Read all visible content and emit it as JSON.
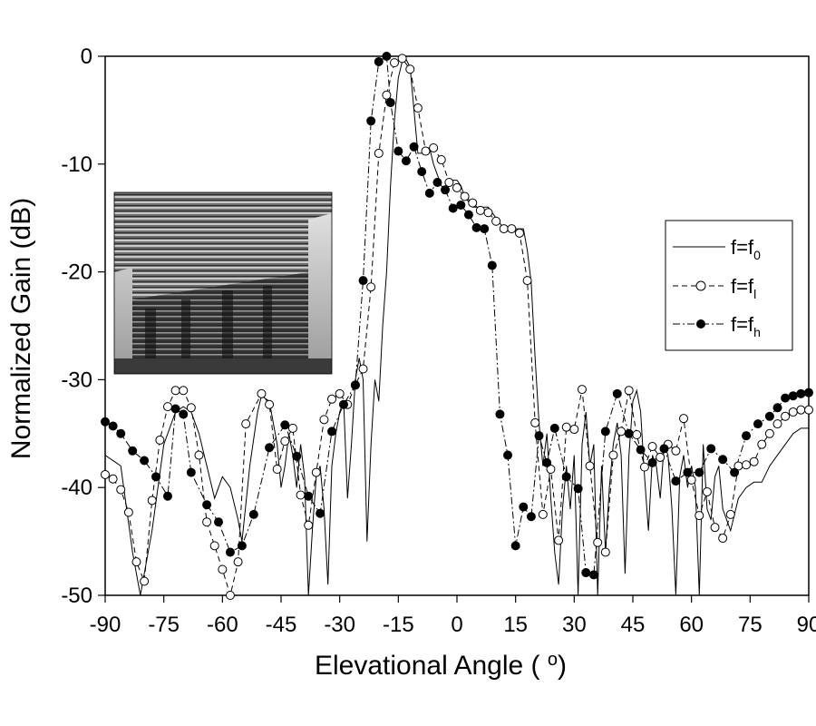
{
  "chart_data": {
    "type": "line",
    "xlabel": "Elevational Angle ( ",
    "xlabel_unit": "o",
    "xlabel_close": ")",
    "ylabel": "Normalized Gain (dB)",
    "xlim": [
      -90,
      90
    ],
    "ylim": [
      -50,
      0
    ],
    "x_ticks": [
      -90,
      -75,
      -60,
      -45,
      -30,
      -15,
      0,
      15,
      30,
      45,
      60,
      75,
      90
    ],
    "y_ticks": [
      0,
      -10,
      -20,
      -30,
      -40,
      -50
    ],
    "x_tick_labels": [
      "-90",
      "-75",
      "-60",
      "-45",
      "-30",
      "-15",
      "0",
      "15",
      "30",
      "45",
      "60",
      "75",
      "90"
    ],
    "y_tick_labels": [
      "0",
      "-10",
      "-20",
      "-30",
      "-40",
      "-50"
    ],
    "grid": false,
    "legend_position": "right",
    "inset_photo": "antenna-array-photo",
    "series": [
      {
        "name": "f=f",
        "subscript": "0",
        "style": "solid",
        "marker": "none",
        "x": [
          -90,
          -86,
          -83,
          -81,
          -78,
          -75,
          -72,
          -70,
          -68,
          -66,
          -64,
          -62,
          -60,
          -58,
          -56,
          -55,
          -53,
          -51,
          -50,
          -48,
          -46,
          -45,
          -44,
          -43,
          -42,
          -41,
          -40,
          -39,
          -38,
          -37,
          -36,
          -35,
          -34,
          -33,
          -32,
          -31,
          -30,
          -29,
          -28,
          -27,
          -26,
          -25,
          -24,
          -23,
          -22,
          -21,
          -20,
          -19,
          -18,
          -17,
          -16,
          -15,
          -14,
          -13,
          -12,
          -11,
          -10,
          -9,
          -8,
          -7,
          -6,
          -5,
          -4,
          -3,
          -2,
          -1,
          0,
          1,
          2,
          3,
          4,
          5,
          6,
          7,
          8,
          9,
          10,
          11,
          12,
          13,
          14,
          15,
          16,
          17,
          18,
          19,
          20,
          21,
          22,
          23,
          24,
          25,
          26,
          27,
          28,
          29,
          30,
          31,
          32,
          33,
          34,
          35,
          36,
          37,
          38,
          39,
          40,
          41,
          42,
          43,
          44,
          45,
          46,
          47,
          48,
          49,
          50,
          51,
          52,
          53,
          54,
          55,
          56,
          57,
          58,
          59,
          60,
          61,
          62,
          63,
          64,
          65,
          66,
          67,
          68,
          69,
          70,
          72,
          74,
          76,
          78,
          80,
          82,
          84,
          86,
          88,
          90
        ],
        "y": [
          -37,
          -38,
          -46,
          -50,
          -44,
          -36,
          -33,
          -32.5,
          -33,
          -35,
          -38,
          -41,
          -39,
          -40,
          -43,
          -45,
          -38,
          -33,
          -31.5,
          -32,
          -36,
          -40,
          -38,
          -35,
          -37,
          -40,
          -36,
          -39,
          -50,
          -44,
          -39,
          -38,
          -42,
          -49,
          -38,
          -35,
          -33,
          -32,
          -41,
          -36,
          -30,
          -28,
          -30,
          -45,
          -36,
          -30,
          -32,
          -25,
          -20,
          -12,
          -6,
          -2,
          -0.5,
          -0.3,
          -1,
          -5,
          -9,
          -9,
          -8.5,
          -8.5,
          -10,
          -11,
          -12,
          -12.5,
          -12,
          -11.5,
          -11.5,
          -12,
          -13,
          -13.5,
          -14,
          -14,
          -14,
          -14,
          -14,
          -14.5,
          -15,
          -15.5,
          -16,
          -16,
          -16,
          -16,
          -16,
          -16,
          -18,
          -21,
          -28,
          -34,
          -38,
          -35,
          -41,
          -46,
          -49,
          -42,
          -38,
          -42,
          -37,
          -50,
          -36,
          -33,
          -38,
          -36,
          -50,
          -38,
          -46,
          -40,
          -36,
          -34,
          -37,
          -48,
          -37,
          -32,
          -31,
          -33,
          -39,
          -44,
          -37,
          -38,
          -41,
          -36,
          -37,
          -42,
          -50,
          -39,
          -37,
          -40,
          -38,
          -40,
          -50,
          -36,
          -42,
          -43,
          -39,
          -38,
          -42,
          -43,
          -44,
          -41,
          -40,
          -39.5,
          -39.5,
          -38,
          -37,
          -36,
          -35,
          -34.5,
          -34.5
        ]
      },
      {
        "name": "f=f",
        "subscript": "l",
        "style": "dashed",
        "marker": "open-circle",
        "x": [
          -90,
          -88,
          -86,
          -84,
          -82,
          -80,
          -78,
          -76,
          -74,
          -72,
          -70,
          -68,
          -66,
          -64,
          -62,
          -60,
          -58,
          -56,
          -54,
          -50,
          -48,
          -46,
          -44,
          -42,
          -40,
          -38,
          -36,
          -34,
          -32,
          -30,
          -28,
          -26,
          -24,
          -22,
          -20,
          -18,
          -16,
          -14,
          -12,
          -10,
          -8,
          -6,
          -4,
          -2,
          0,
          2,
          4,
          6,
          8,
          10,
          12,
          14,
          16,
          18,
          20,
          22,
          24,
          26,
          28,
          30,
          32,
          34,
          36,
          38,
          40,
          42,
          44,
          46,
          48,
          50,
          52,
          54,
          56,
          58,
          60,
          62,
          64,
          66,
          68,
          70,
          72,
          74,
          76,
          78,
          80,
          82,
          84,
          86,
          88,
          90
        ],
        "y": [
          -38.8,
          -39.2,
          -40.2,
          -42.3,
          -46.9,
          -48.7,
          -41.2,
          -35.6,
          -32.5,
          -31.0,
          -31.0,
          -32.6,
          -37.0,
          -43.2,
          -45.4,
          -47.6,
          -50.0,
          -46.9,
          -34.1,
          -31.3,
          -32.3,
          -38.3,
          -35.7,
          -34.5,
          -40.7,
          -43.5,
          -38.6,
          -33.7,
          -31.8,
          -31.3,
          -32.3,
          -30.5,
          -29.0,
          -21.4,
          -9.0,
          -3.6,
          -0.6,
          -0.2,
          -1.2,
          -4.8,
          -8.8,
          -8.5,
          -9.6,
          -11.7,
          -12.2,
          -13.0,
          -13.6,
          -14.3,
          -14.5,
          -15.3,
          -16.0,
          -16.0,
          -16.4,
          -20.8,
          -34.0,
          -42.5,
          -38.3,
          -44.9,
          -34.4,
          -34.6,
          -30.9,
          -38.0,
          -45.1,
          -46.0,
          -37.0,
          -34.8,
          -31.0,
          -35.1,
          -38.1,
          -36.2,
          -37.2,
          -36.0,
          -36.6,
          -33.6,
          -39.3,
          -42.6,
          -40.4,
          -43.7,
          -44.7,
          -42.5,
          -38.0,
          -37.9,
          -37.6,
          -36.0,
          -35.0,
          -34.1,
          -33.4,
          -33.0,
          -32.8,
          -32.8
        ]
      },
      {
        "name": "f=f",
        "subscript": "h",
        "style": "dashdot",
        "marker": "filled-circle",
        "x": [
          -90,
          -88,
          -86,
          -83,
          -80,
          -77,
          -74,
          -72,
          -70,
          -68,
          -64,
          -61,
          -58,
          -55,
          -52,
          -48,
          -44,
          -41,
          -38,
          -35,
          -32,
          -29,
          -26,
          -24,
          -22,
          -20,
          -18,
          -17,
          -15,
          -13,
          -11,
          -9,
          -7,
          -5,
          -3,
          -1,
          1,
          3,
          5,
          7,
          9,
          11,
          13,
          15,
          17,
          19,
          21,
          23,
          25,
          28,
          31,
          33,
          35,
          38,
          41,
          44,
          47,
          50,
          53,
          56,
          59,
          62,
          65,
          68,
          71,
          74,
          77,
          80,
          82,
          84,
          86,
          88,
          90
        ],
        "y": [
          -33.9,
          -34.3,
          -35.0,
          -36.6,
          -37.5,
          -39.0,
          -40.8,
          -32.7,
          -33.2,
          -38.6,
          -41.6,
          -43.2,
          -46.0,
          -45.4,
          -42.5,
          -36.3,
          -34.2,
          -37.1,
          -40.8,
          -42.4,
          -34.8,
          -32.3,
          -30.5,
          -20.8,
          -6.0,
          -0.5,
          0.0,
          -4.3,
          -8.8,
          -9.7,
          -8.4,
          -10.7,
          -12.7,
          -11.7,
          -12.4,
          -14.1,
          -13.8,
          -14.7,
          -15.9,
          -16.0,
          -19.4,
          -33.2,
          -37.0,
          -45.4,
          -41.8,
          -42.7,
          -35.2,
          -37.7,
          -34.5,
          -39.0,
          -40.1,
          -47.9,
          -48.1,
          -34.8,
          -31.3,
          -35.0,
          -36.5,
          -37.7,
          -36.4,
          -39.4,
          -38.6,
          -38.6,
          -36.4,
          -37.4,
          -38.6,
          -35.2,
          -34.1,
          -33.4,
          -32.6,
          -31.7,
          -31.5,
          -31.3,
          -31.2
        ]
      }
    ]
  }
}
